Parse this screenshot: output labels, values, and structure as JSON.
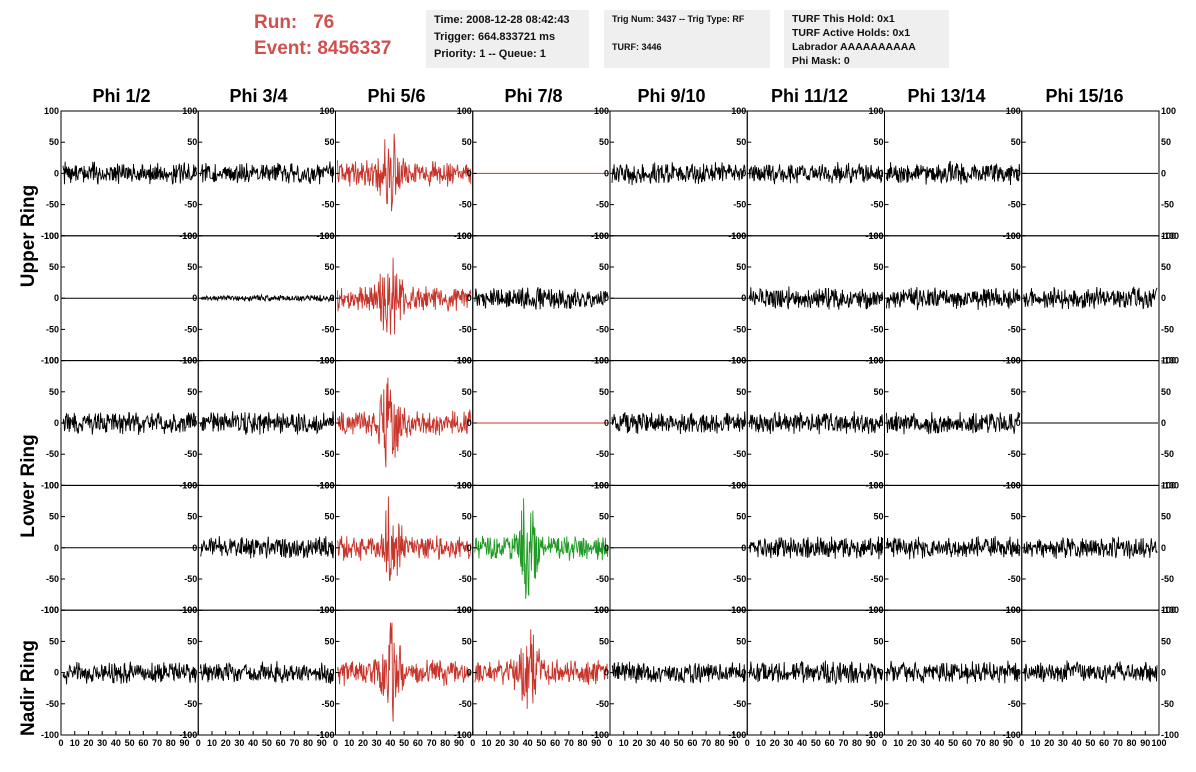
{
  "header": {
    "run_label": "Run:",
    "run_value": "76",
    "event_label": "Event:",
    "event_value": "8456337",
    "time": "Time: 2008-12-28 08:42:43",
    "trigger": "Trigger: 664.833721 ms",
    "priority": "Priority: 1 -- Queue: 1",
    "trig_num": "Trig Num: 3437 -- Trig Type: RF",
    "turf": "TURF: 3446",
    "turf_hold": "TURF This Hold: 0x1",
    "turf_active": "TURF Active Holds: 0x1",
    "labrador": "Labrador AAAAAAAAAA",
    "phi_mask": "Phi Mask: 0"
  },
  "columns": [
    "Phi 1/2",
    "Phi 3/4",
    "Phi 5/6",
    "Phi 7/8",
    "Phi 9/10",
    "Phi 11/12",
    "Phi 13/14",
    "Phi 15/16"
  ],
  "rings": [
    "Upper Ring",
    "Lower Ring",
    "Nadir Ring"
  ],
  "axes": {
    "y_ticks": [
      "100",
      "50",
      "0",
      "-50",
      "-100"
    ],
    "x_ticks": [
      "0",
      "10",
      "20",
      "30",
      "40",
      "50",
      "60",
      "70",
      "80",
      "90",
      "100"
    ]
  },
  "colors": {
    "normal": "#000000",
    "triggered": "#c8342a",
    "highlight": "#1f9a24",
    "title": "#d0504e"
  },
  "rows": [
    {
      "ring": "Upper Ring",
      "types": [
        "noise",
        "noise",
        "pulse-red",
        "flat-red",
        "noise",
        "noise",
        "noise",
        "flat"
      ]
    },
    {
      "ring": "Upper Ring",
      "types": [
        "flat",
        "low",
        "pulse-red",
        "noise",
        "flat",
        "noise",
        "noise",
        "noise"
      ]
    },
    {
      "ring": "Lower Ring",
      "types": [
        "noise",
        "noise",
        "pulse-red",
        "flat-red",
        "noise",
        "noise",
        "noise",
        "flat"
      ]
    },
    {
      "ring": "Lower Ring",
      "types": [
        "flat",
        "noise",
        "pulse-red",
        "pulse-green",
        "flat",
        "noise",
        "noise",
        "noise"
      ]
    },
    {
      "ring": "Nadir Ring",
      "types": [
        "noise",
        "noise",
        "pulse-red",
        "pulse-red",
        "noise",
        "noise",
        "noise",
        "noise"
      ]
    }
  ]
}
